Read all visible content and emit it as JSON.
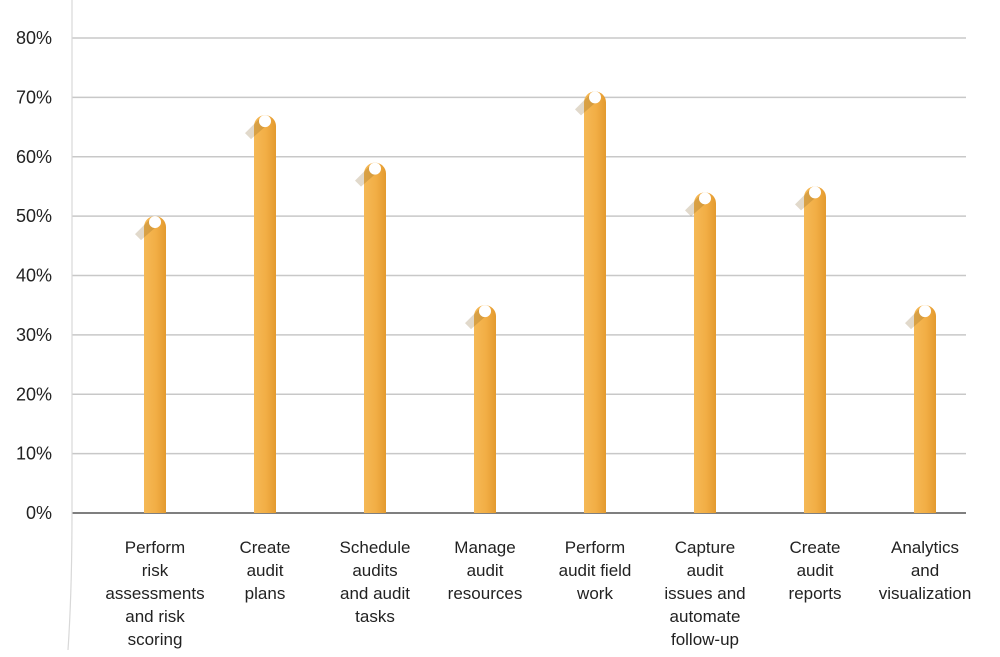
{
  "chart_data": {
    "type": "bar",
    "title": "",
    "xlabel": "",
    "ylabel": "",
    "ylim": [
      0,
      80
    ],
    "ytick_step": 10,
    "ytick_suffix": "%",
    "grid": true,
    "categories": [
      "Perform risk assessments and risk scoring",
      "Create audit plans",
      "Schedule audits and audit tasks",
      "Manage audit resources",
      "Perform audit field work",
      "Capture audit issues and automate follow-up",
      "Create audit reports",
      "Analytics and visualization"
    ],
    "category_lines": [
      [
        "Perform",
        "risk",
        "assessments",
        "and risk",
        "scoring"
      ],
      [
        "Create",
        "audit",
        "plans"
      ],
      [
        "Schedule",
        "audits",
        "and audit",
        "tasks"
      ],
      [
        "Manage",
        "audit",
        "resources"
      ],
      [
        "Perform",
        "audit field",
        "work"
      ],
      [
        "Capture",
        "audit",
        "issues and",
        "automate",
        "follow-up"
      ],
      [
        "Create",
        "audit",
        "reports"
      ],
      [
        "Analytics",
        "and",
        "visualization"
      ]
    ],
    "values": [
      49,
      66,
      58,
      34,
      70,
      53,
      54,
      34
    ],
    "colors": {
      "bar": "#F2AE45",
      "bar_dark": "#E49A2E",
      "grid": "#C8C8C8",
      "axis": "#555555",
      "marker": "#FFFFFF"
    }
  }
}
